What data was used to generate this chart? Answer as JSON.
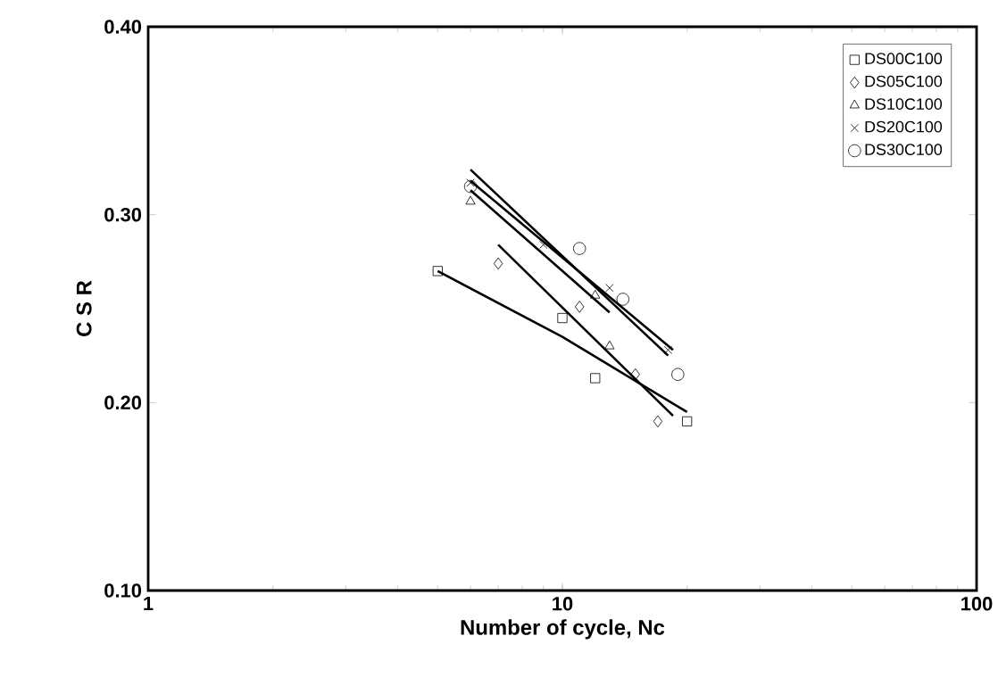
{
  "chart_data": {
    "type": "scatter",
    "xlabel": "Number of cycle, Nc",
    "ylabel": "C S R",
    "log": "x",
    "xlim": [
      1,
      100
    ],
    "ylim": [
      0.1,
      0.4
    ],
    "xticks": [
      1,
      10,
      100
    ],
    "yticks": [
      {
        "value": 0.1,
        "label": "0.10"
      },
      {
        "value": 0.2,
        "label": "0.20"
      },
      {
        "value": 0.3,
        "label": "0.30"
      },
      {
        "value": 0.4,
        "label": "0.40"
      }
    ],
    "grid": false,
    "legend": "top right",
    "series": [
      {
        "name": "DS00C100",
        "color": "#000000",
        "marker": "square",
        "x": [
          5,
          10,
          12,
          20
        ],
        "values": [
          0.27,
          0.245,
          0.213,
          0.19
        ]
      },
      {
        "name": "DS05C100",
        "color": "#000000",
        "marker": "diamond",
        "x": [
          7,
          11,
          15,
          17
        ],
        "values": [
          0.274,
          0.251,
          0.215,
          0.19
        ]
      },
      {
        "name": "DS10C100",
        "color": "#000000",
        "marker": "triangle",
        "x": [
          6,
          12,
          13
        ],
        "values": [
          0.307,
          0.257,
          0.23
        ]
      },
      {
        "name": "DS20C100",
        "color": "#000000",
        "marker": "cross",
        "x": [
          6,
          9,
          13,
          18
        ],
        "values": [
          0.317,
          0.284,
          0.261,
          0.228
        ]
      },
      {
        "name": "DS30C100",
        "color": "#000000",
        "marker": "circle",
        "x": [
          6,
          11,
          14,
          19
        ],
        "values": [
          0.315,
          0.282,
          0.255,
          0.215
        ]
      },
      {
        "type": "line",
        "color": "#000000",
        "marker": "none",
        "x": [
          5,
          10,
          20
        ],
        "values": [
          0.27,
          0.235,
          0.195
        ]
      },
      {
        "type": "line",
        "color": "#000000",
        "marker": "none",
        "x": [
          7,
          18.5
        ],
        "values": [
          0.284,
          0.193
        ]
      },
      {
        "type": "line",
        "color": "#000000",
        "marker": "none",
        "x": [
          6,
          13
        ],
        "values": [
          0.313,
          0.248
        ]
      },
      {
        "type": "line",
        "color": "#000000",
        "marker": "none",
        "x": [
          6,
          18
        ],
        "values": [
          0.324,
          0.225
        ]
      },
      {
        "type": "line",
        "color": "#000000",
        "marker": "none",
        "x": [
          6,
          18.5
        ],
        "values": [
          0.318,
          0.228
        ]
      }
    ]
  }
}
